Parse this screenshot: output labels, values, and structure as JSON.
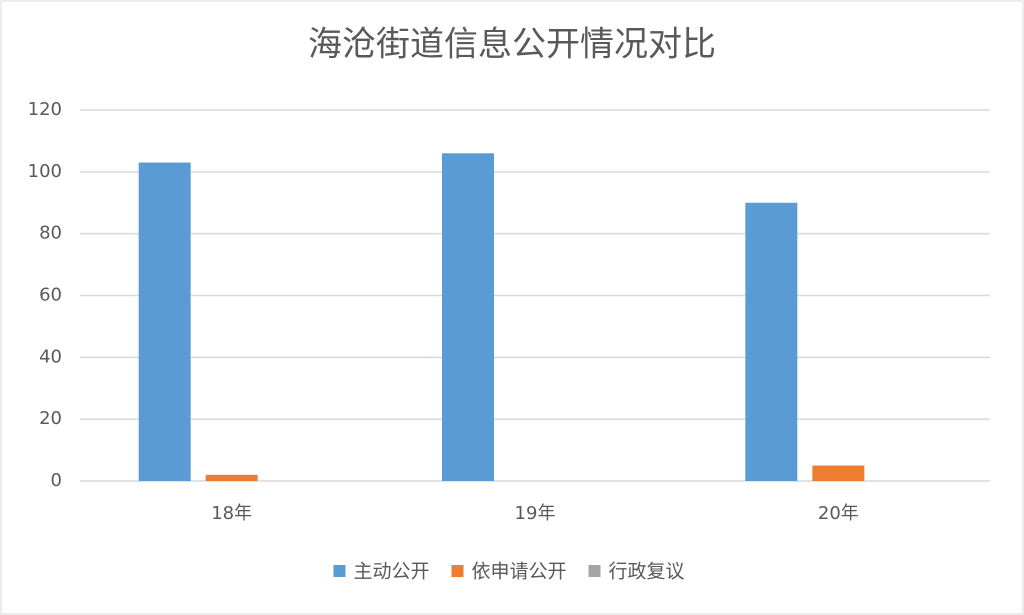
{
  "chart_data": {
    "type": "bar",
    "title": "海沧街道信息公开情况对比",
    "categories": [
      "18年",
      "19年",
      "20年"
    ],
    "series": [
      {
        "name": "主动公开",
        "color": "#5b9bd5",
        "values": [
          103,
          106,
          90
        ]
      },
      {
        "name": "依申请公开",
        "color": "#ed7d31",
        "values": [
          2,
          0,
          5
        ]
      },
      {
        "name": "行政复议",
        "color": "#a5a5a5",
        "values": [
          0,
          0,
          0
        ]
      }
    ],
    "ylim": [
      0,
      120
    ],
    "yticks": [
      0,
      20,
      40,
      60,
      80,
      100,
      120
    ],
    "grid": true,
    "legend": "bottom"
  }
}
